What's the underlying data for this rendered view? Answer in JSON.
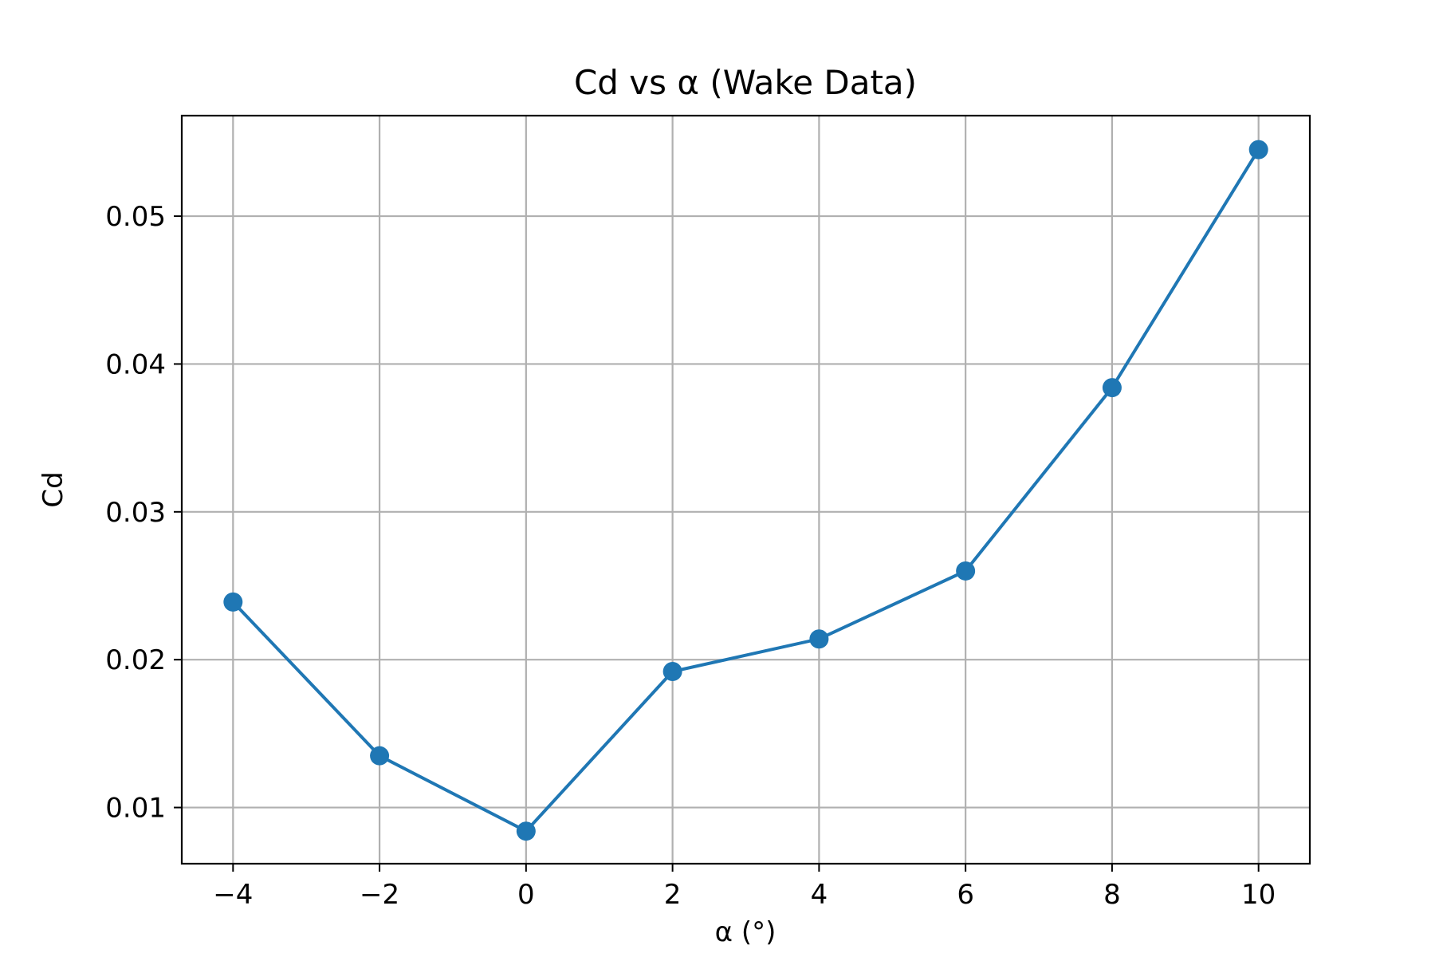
{
  "chart_data": {
    "type": "line",
    "title": "Cd vs α (Wake Data)",
    "xlabel": "α (°)",
    "ylabel": "Cd",
    "xlim": [
      -4.7,
      10.7
    ],
    "ylim": [
      0.0062,
      0.0568
    ],
    "xticks": [
      -4,
      -2,
      0,
      2,
      4,
      6,
      8,
      10
    ],
    "xtick_labels": [
      "−4",
      "−2",
      "0",
      "2",
      "4",
      "6",
      "8",
      "10"
    ],
    "yticks": [
      0.01,
      0.02,
      0.03,
      0.04,
      0.05
    ],
    "ytick_labels": [
      "0.01",
      "0.02",
      "0.03",
      "0.04",
      "0.05"
    ],
    "grid": true,
    "color": "#1f77b4",
    "series": [
      {
        "x": [
          -4,
          -2,
          0,
          2,
          4,
          6,
          8,
          10
        ],
        "y": [
          0.0239,
          0.0135,
          0.0084,
          0.0192,
          0.0214,
          0.026,
          0.0384,
          0.0545
        ]
      }
    ]
  }
}
